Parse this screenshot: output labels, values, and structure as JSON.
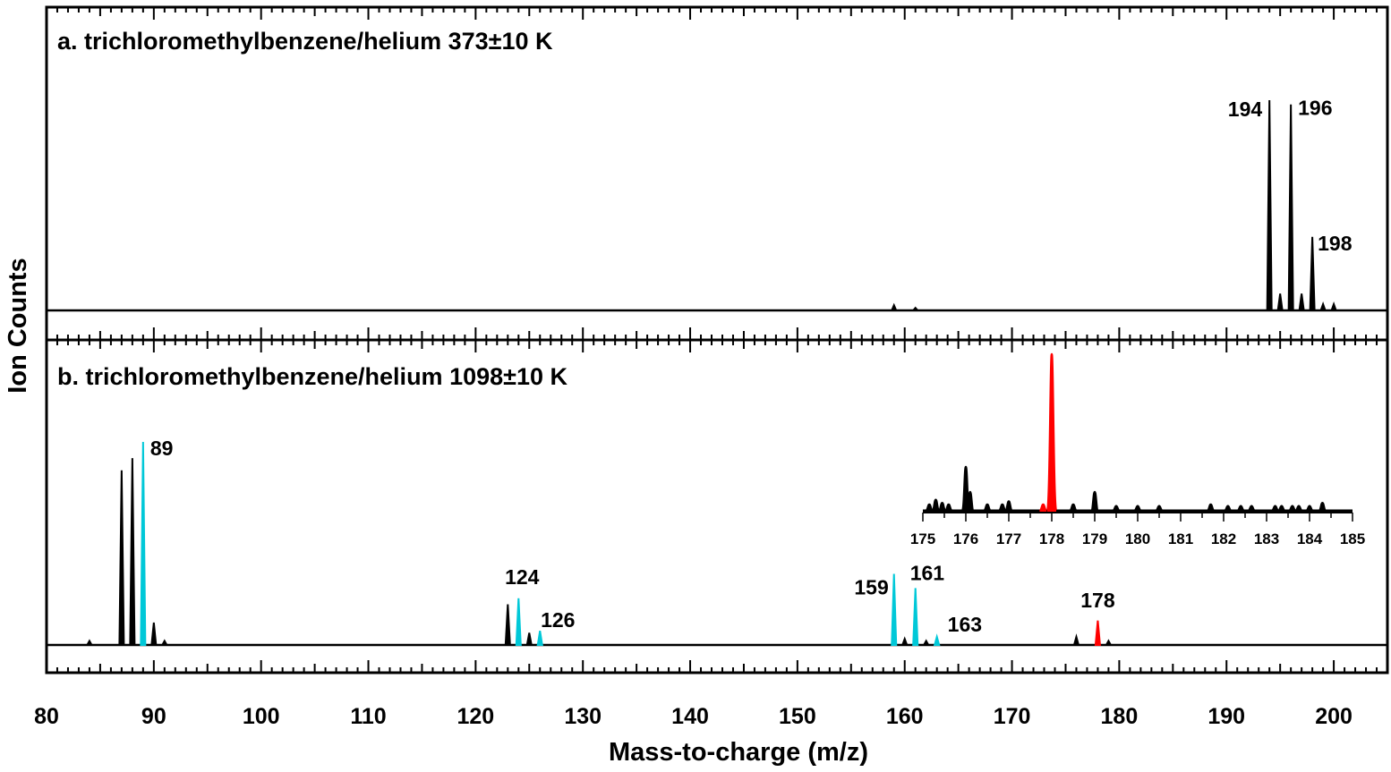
{
  "chart_data": {
    "type": "line",
    "xlabel": "Mass-to-charge (m/z)",
    "ylabel": "Ion Counts",
    "xlim": [
      80,
      205
    ],
    "x_ticks": [
      80,
      90,
      100,
      110,
      120,
      130,
      140,
      150,
      160,
      170,
      180,
      190,
      200
    ],
    "colors": {
      "trace": "#000000",
      "cyan": "#00c8d8",
      "red": "#ff0000"
    },
    "panels": [
      {
        "id": "a",
        "title": "a. trichloromethylbenzene/helium 373±10 K",
        "ylim": [
          0,
          1
        ],
        "peaks": [
          {
            "mz": 159,
            "y": 0.025,
            "color": "black"
          },
          {
            "mz": 161,
            "y": 0.012,
            "color": "black"
          },
          {
            "mz": 194,
            "y": 1.0,
            "color": "black",
            "label": "194"
          },
          {
            "mz": 195,
            "y": 0.08,
            "color": "black"
          },
          {
            "mz": 196,
            "y": 0.98,
            "color": "black",
            "label": "196"
          },
          {
            "mz": 197,
            "y": 0.08,
            "color": "black"
          },
          {
            "mz": 198,
            "y": 0.35,
            "color": "black",
            "label": "198"
          },
          {
            "mz": 199,
            "y": 0.03,
            "color": "black"
          },
          {
            "mz": 200,
            "y": 0.03,
            "color": "black"
          }
        ]
      },
      {
        "id": "b",
        "title": "b. trichloromethylbenzene/helium 1098±10 K",
        "ylim": [
          0,
          1
        ],
        "peaks": [
          {
            "mz": 84,
            "y": 0.02,
            "color": "black"
          },
          {
            "mz": 87,
            "y": 0.86,
            "color": "black"
          },
          {
            "mz": 88,
            "y": 0.92,
            "color": "black"
          },
          {
            "mz": 89,
            "y": 1.0,
            "color": "cyan",
            "label": "89"
          },
          {
            "mz": 90,
            "y": 0.11,
            "color": "black"
          },
          {
            "mz": 91,
            "y": 0.02,
            "color": "black"
          },
          {
            "mz": 123,
            "y": 0.2,
            "color": "black"
          },
          {
            "mz": 124,
            "y": 0.23,
            "color": "cyan",
            "label": "124"
          },
          {
            "mz": 125,
            "y": 0.06,
            "color": "black"
          },
          {
            "mz": 126,
            "y": 0.07,
            "color": "cyan",
            "label": "126"
          },
          {
            "mz": 159,
            "y": 0.35,
            "color": "cyan",
            "label": "159"
          },
          {
            "mz": 160,
            "y": 0.03,
            "color": "black"
          },
          {
            "mz": 161,
            "y": 0.28,
            "color": "cyan",
            "label": "161"
          },
          {
            "mz": 162,
            "y": 0.02,
            "color": "black"
          },
          {
            "mz": 163,
            "y": 0.04,
            "color": "cyan",
            "label": "163"
          },
          {
            "mz": 176,
            "y": 0.04,
            "color": "black"
          },
          {
            "mz": 178,
            "y": 0.12,
            "color": "red",
            "label": "178"
          },
          {
            "mz": 179,
            "y": 0.02,
            "color": "black"
          }
        ],
        "inset": {
          "xlim": [
            175,
            185
          ],
          "x_ticks": [
            175,
            176,
            177,
            178,
            179,
            180,
            181,
            182,
            183,
            184,
            185
          ],
          "peaks": [
            {
              "mz": 175.15,
              "y": 0.04,
              "color": "black"
            },
            {
              "mz": 175.3,
              "y": 0.07,
              "color": "black"
            },
            {
              "mz": 175.45,
              "y": 0.05,
              "color": "black"
            },
            {
              "mz": 175.6,
              "y": 0.04,
              "color": "black"
            },
            {
              "mz": 176.0,
              "y": 0.28,
              "color": "black"
            },
            {
              "mz": 176.1,
              "y": 0.12,
              "color": "black"
            },
            {
              "mz": 176.5,
              "y": 0.04,
              "color": "black"
            },
            {
              "mz": 176.85,
              "y": 0.04,
              "color": "black"
            },
            {
              "mz": 177.0,
              "y": 0.06,
              "color": "black"
            },
            {
              "mz": 177.8,
              "y": 0.04,
              "color": "red"
            },
            {
              "mz": 178.0,
              "y": 1.0,
              "color": "red"
            },
            {
              "mz": 178.5,
              "y": 0.04,
              "color": "black"
            },
            {
              "mz": 179.0,
              "y": 0.12,
              "color": "black"
            },
            {
              "mz": 179.5,
              "y": 0.03,
              "color": "black"
            },
            {
              "mz": 180.0,
              "y": 0.03,
              "color": "black"
            },
            {
              "mz": 180.5,
              "y": 0.03,
              "color": "black"
            },
            {
              "mz": 181.7,
              "y": 0.04,
              "color": "black"
            },
            {
              "mz": 182.1,
              "y": 0.03,
              "color": "black"
            },
            {
              "mz": 182.4,
              "y": 0.03,
              "color": "black"
            },
            {
              "mz": 182.65,
              "y": 0.03,
              "color": "black"
            },
            {
              "mz": 183.2,
              "y": 0.03,
              "color": "black"
            },
            {
              "mz": 183.35,
              "y": 0.03,
              "color": "black"
            },
            {
              "mz": 183.6,
              "y": 0.03,
              "color": "black"
            },
            {
              "mz": 183.75,
              "y": 0.03,
              "color": "black"
            },
            {
              "mz": 184.0,
              "y": 0.03,
              "color": "black"
            },
            {
              "mz": 184.3,
              "y": 0.05,
              "color": "black"
            }
          ]
        }
      }
    ]
  }
}
